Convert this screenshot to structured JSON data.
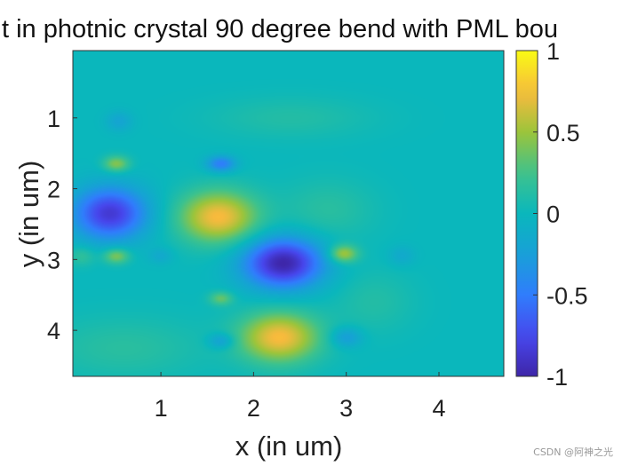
{
  "chart_data": {
    "type": "heatmap",
    "title": "t in photnic crystal 90 degree bend with PML bou",
    "xlabel": "x (in um)",
    "ylabel": "y (in um)",
    "xlim": [
      0.05,
      4.7
    ],
    "ylim": [
      0.05,
      4.65
    ],
    "y_reversed": true,
    "x_ticks": [
      1,
      2,
      3,
      4
    ],
    "x_tick_labels": [
      "1",
      "2",
      "3",
      "4"
    ],
    "y_ticks": [
      1,
      2,
      3,
      4
    ],
    "y_tick_labels": [
      "1",
      "2",
      "3",
      "4"
    ],
    "colorbar": {
      "limits": [
        -1,
        1
      ],
      "ticks": [
        1,
        0.5,
        0,
        -0.5,
        -1
      ],
      "tick_labels": [
        "1",
        "0.5",
        "0",
        "-0.5",
        "-1"
      ],
      "colormap": "parula"
    },
    "background_value": 0,
    "field_features": [
      {
        "x": 0.45,
        "y": 2.35,
        "value": -0.85,
        "sx": 0.28,
        "sy": 0.26
      },
      {
        "x": 1.62,
        "y": 2.4,
        "value": 0.75,
        "sx": 0.3,
        "sy": 0.26
      },
      {
        "x": 2.32,
        "y": 3.05,
        "value": -1.0,
        "sx": 0.3,
        "sy": 0.25
      },
      {
        "x": 2.28,
        "y": 4.1,
        "value": 0.75,
        "sx": 0.3,
        "sy": 0.25
      },
      {
        "x": 0.52,
        "y": 1.65,
        "value": 0.45,
        "sx": 0.1,
        "sy": 0.08
      },
      {
        "x": 0.52,
        "y": 2.95,
        "value": 0.45,
        "sx": 0.1,
        "sy": 0.08
      },
      {
        "x": 1.65,
        "y": 1.65,
        "value": -0.5,
        "sx": 0.11,
        "sy": 0.08
      },
      {
        "x": 1.65,
        "y": 3.55,
        "value": 0.35,
        "sx": 0.09,
        "sy": 0.07
      },
      {
        "x": 2.97,
        "y": 2.92,
        "value": 0.55,
        "sx": 0.11,
        "sy": 0.09
      },
      {
        "x": 1.65,
        "y": 4.15,
        "value": -0.3,
        "sx": 0.1,
        "sy": 0.08
      },
      {
        "x": 3.0,
        "y": 4.1,
        "value": -0.3,
        "sx": 0.12,
        "sy": 0.1
      },
      {
        "x": 0.55,
        "y": 1.05,
        "value": -0.2,
        "sx": 0.1,
        "sy": 0.1
      },
      {
        "x": 1.0,
        "y": 2.95,
        "value": -0.15,
        "sx": 0.09,
        "sy": 0.08
      },
      {
        "x": 0.15,
        "y": 2.95,
        "value": 0.2,
        "sx": 0.1,
        "sy": 0.1
      },
      {
        "x": 3.6,
        "y": 2.95,
        "value": -0.15,
        "sx": 0.1,
        "sy": 0.1
      },
      {
        "x": 2.4,
        "y": 1.0,
        "value": 0.12,
        "sx": 0.6,
        "sy": 0.2
      },
      {
        "x": 3.3,
        "y": 3.6,
        "value": 0.12,
        "sx": 0.3,
        "sy": 0.3
      },
      {
        "x": 0.6,
        "y": 4.25,
        "value": 0.15,
        "sx": 0.6,
        "sy": 0.3
      },
      {
        "x": 2.8,
        "y": 2.3,
        "value": 0.15,
        "sx": 0.35,
        "sy": 0.3
      }
    ]
  },
  "watermark": "CSDN @阿神之光"
}
